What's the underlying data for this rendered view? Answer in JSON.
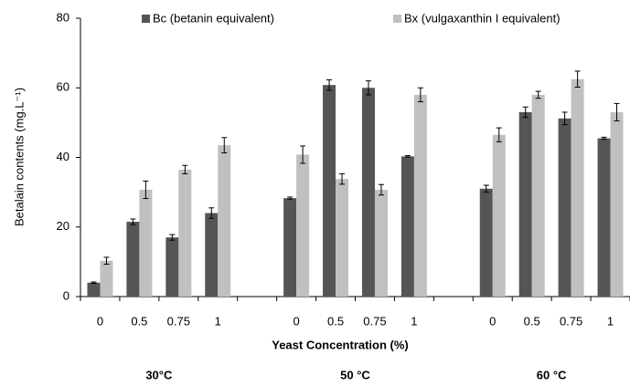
{
  "chart_data": {
    "type": "bar",
    "y_label": "Betalain contents (mg.L⁻¹)",
    "x_label": "Yeast Concentration (%)",
    "categories": [
      "0",
      "0.5",
      "0.75",
      "1",
      null,
      "0",
      "0.5",
      "0.75",
      "1",
      null,
      "0",
      "0.5",
      "0.75",
      "1"
    ],
    "group_labels": [
      "30°C",
      "50 °C",
      "60 °C"
    ],
    "series": [
      {
        "name": "Bc (betanin equivalent)",
        "color": "#555555",
        "values": [
          4,
          21.5,
          17,
          24,
          null,
          28.3,
          60.8,
          60,
          40.3,
          null,
          31,
          53,
          51.2,
          45.5
        ],
        "errors": [
          0.2,
          0.8,
          0.8,
          1.5,
          null,
          0.3,
          1.5,
          2,
          0.2,
          null,
          1,
          1.5,
          1.8,
          0.3
        ]
      },
      {
        "name": "Bx (vulgaxanthin I equivalent)",
        "color": "#c0c0c0",
        "values": [
          10.3,
          30.7,
          36.5,
          43.5,
          null,
          40.8,
          33.8,
          30.7,
          58,
          null,
          46.5,
          58,
          62.5,
          53
        ],
        "errors": [
          1,
          2.5,
          1.2,
          2.2,
          null,
          2.5,
          1.5,
          1.5,
          2,
          null,
          2,
          1,
          2.3,
          2.5
        ]
      }
    ],
    "ylim": [
      0,
      80
    ],
    "yticks": [
      0,
      20,
      40,
      60,
      80
    ],
    "grid": false
  }
}
